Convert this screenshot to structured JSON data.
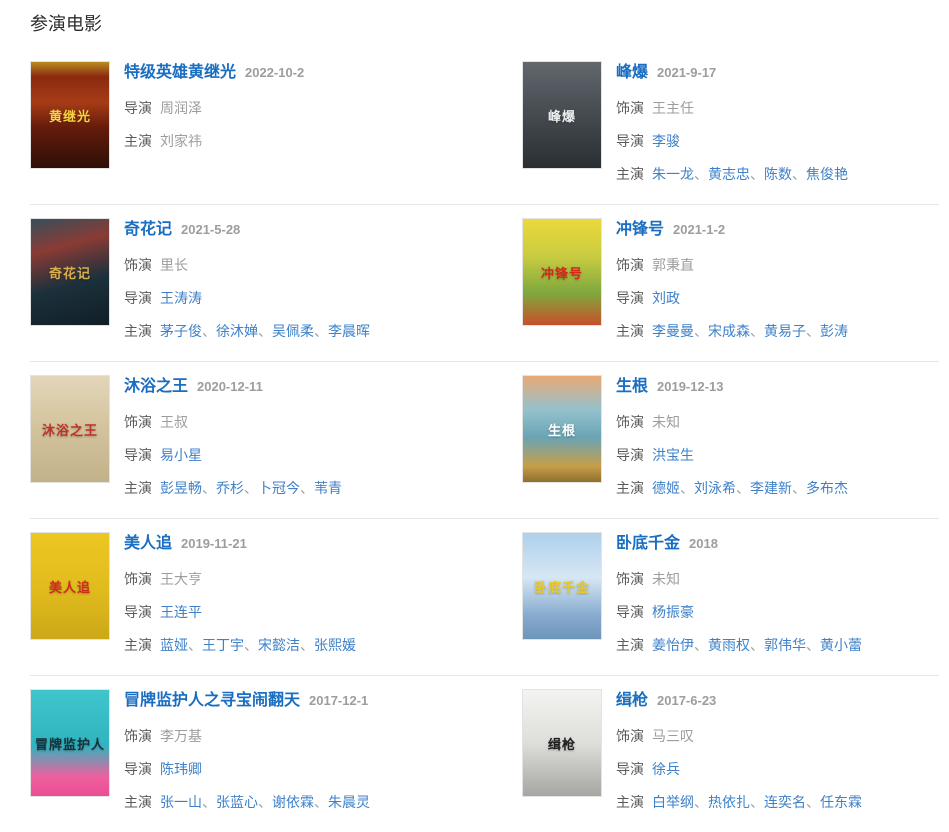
{
  "page": {
    "heading": "参演电影"
  },
  "labels": {
    "role": "饰演",
    "director": "导演",
    "stars": "主演",
    "separator": "、"
  },
  "colors": {
    "title_link": "#1a6ec2",
    "name_link": "#3e81c8",
    "label_gray": "#5b5b5b",
    "value_gray": "#9d9d9d",
    "date_gray": "#9d9d9d",
    "divider": "#e7e7e7",
    "heading_text": "#2d2d2d"
  },
  "movies": [
    {
      "title": "特级英雄黄继光",
      "date": "2022-10-2",
      "role": null,
      "director": {
        "text": "周润泽",
        "is_link": false
      },
      "stars": [
        {
          "text": "刘家祎",
          "is_link": false
        }
      ],
      "poster": {
        "gradient": "linear-gradient(180deg,#b98b1f 0%,#8a2a10 14%,#a63c16 38%,#641b0c 62%,#2e0f07 100%)",
        "label": "黄继光",
        "label_color": "#f6d340"
      }
    },
    {
      "title": "峰爆",
      "date": "2021-9-17",
      "role": {
        "text": "王主任",
        "is_link": false
      },
      "director": {
        "text": "李骏",
        "is_link": true
      },
      "stars": [
        {
          "text": "朱一龙",
          "is_link": true
        },
        {
          "text": "黄志忠",
          "is_link": true
        },
        {
          "text": "陈数",
          "is_link": true
        },
        {
          "text": "焦俊艳",
          "is_link": true
        }
      ],
      "poster": {
        "gradient": "linear-gradient(180deg,#62686d 0%,#474d52 45%,#2a2f33 100%)",
        "label": "峰爆",
        "label_color": "#eceef0"
      }
    },
    {
      "title": "奇花记",
      "date": "2021-5-28",
      "role": {
        "text": "里长",
        "is_link": false
      },
      "director": {
        "text": "王涛涛",
        "is_link": true
      },
      "stars": [
        {
          "text": "茅子俊",
          "is_link": true
        },
        {
          "text": "徐沐婵",
          "is_link": true
        },
        {
          "text": "吴佩柔",
          "is_link": true
        },
        {
          "text": "李晨晖",
          "is_link": true
        }
      ],
      "poster": {
        "gradient": "linear-gradient(165deg,#374f5c 0%,#8a3b34 28%,#1c313c 60%,#101e26 100%)",
        "label": "奇花记",
        "label_color": "#d9af4c"
      }
    },
    {
      "title": "冲锋号",
      "date": "2021-1-2",
      "role": {
        "text": "郭秉直",
        "is_link": false
      },
      "director": {
        "text": "刘政",
        "is_link": true
      },
      "stars": [
        {
          "text": "李曼曼",
          "is_link": true
        },
        {
          "text": "宋成森",
          "is_link": true
        },
        {
          "text": "黄易子",
          "is_link": true
        },
        {
          "text": "彭涛",
          "is_link": true
        }
      ],
      "poster": {
        "gradient": "linear-gradient(180deg,#ecd83c 0%,#c9cc40 35%,#7fa83e 70%,#c8502a 100%)",
        "label": "冲锋号",
        "label_color": "#d3281a"
      }
    },
    {
      "title": "沐浴之王",
      "date": "2020-12-11",
      "role": {
        "text": "王叔",
        "is_link": false
      },
      "director": {
        "text": "易小星",
        "is_link": true
      },
      "stars": [
        {
          "text": "彭昱畅",
          "is_link": true
        },
        {
          "text": "乔杉",
          "is_link": true
        },
        {
          "text": "卜冠今",
          "is_link": true
        },
        {
          "text": "苇青",
          "is_link": true
        }
      ],
      "poster": {
        "gradient": "linear-gradient(180deg,#e3d6ba 0%,#d3c39c 50%,#c2b189 100%)",
        "label": "沐浴之王",
        "label_color": "#bf3126"
      }
    },
    {
      "title": "生根",
      "date": "2019-12-13",
      "role": {
        "text": "未知",
        "is_link": false
      },
      "director": {
        "text": "洪宝生",
        "is_link": true
      },
      "stars": [
        {
          "text": "德姬",
          "is_link": true
        },
        {
          "text": "刘泳希",
          "is_link": true
        },
        {
          "text": "李建新",
          "is_link": true
        },
        {
          "text": "多布杰",
          "is_link": true
        }
      ],
      "poster": {
        "gradient": "linear-gradient(180deg,#e9a876 0%,#93c2cd 32%,#6aa4b4 58%,#c79e49 85%,#8f6f2e 100%)",
        "label": "生根",
        "label_color": "#ffffff"
      }
    },
    {
      "title": "美人追",
      "date": "2019-11-21",
      "role": {
        "text": "王大亨",
        "is_link": false
      },
      "director": {
        "text": "王连平",
        "is_link": true
      },
      "stars": [
        {
          "text": "蓝娅",
          "is_link": true
        },
        {
          "text": "王丁宇",
          "is_link": true
        },
        {
          "text": "宋懿洁",
          "is_link": true
        },
        {
          "text": "张熙媛",
          "is_link": true
        }
      ],
      "poster": {
        "gradient": "linear-gradient(180deg,#ecc722 0%,#e0bb1d 55%,#cda818 100%)",
        "label": "美人追",
        "label_color": "#d02b1f"
      }
    },
    {
      "title": "卧底千金",
      "date": "2018",
      "role": {
        "text": "未知",
        "is_link": false
      },
      "director": {
        "text": "杨振豪",
        "is_link": true
      },
      "stars": [
        {
          "text": "姜怡伊",
          "is_link": true
        },
        {
          "text": "黄雨权",
          "is_link": true
        },
        {
          "text": "郭伟华",
          "is_link": true
        },
        {
          "text": "黄小蕾",
          "is_link": true
        }
      ],
      "poster": {
        "gradient": "linear-gradient(180deg,#aed0ec 0%,#d6e7f4 42%,#86abce 78%,#6e95ba 100%)",
        "label": "卧底千金",
        "label_color": "#e9c930"
      }
    },
    {
      "title": "冒牌监护人之寻宝闹翻天",
      "date": "2017-12-1",
      "role": {
        "text": "李万基",
        "is_link": false
      },
      "director": {
        "text": "陈玮卿",
        "is_link": true
      },
      "stars": [
        {
          "text": "张一山",
          "is_link": true
        },
        {
          "text": "张蓝心",
          "is_link": true
        },
        {
          "text": "谢依霖",
          "is_link": true
        },
        {
          "text": "朱晨灵",
          "is_link": true
        }
      ],
      "poster": {
        "gradient": "linear-gradient(180deg,#3fc6cc 0%,#30b4bf 52%,#ef5f9f 82%,#e94e93 100%)",
        "label": "冒牌监护人",
        "label_color": "#16303a"
      }
    },
    {
      "title": "缉枪",
      "date": "2017-6-23",
      "role": {
        "text": "马三叹",
        "is_link": false
      },
      "director": {
        "text": "徐兵",
        "is_link": true
      },
      "stars": [
        {
          "text": "白举纲",
          "is_link": true
        },
        {
          "text": "热依扎",
          "is_link": true
        },
        {
          "text": "连奕名",
          "is_link": true
        },
        {
          "text": "任东霖",
          "is_link": true
        }
      ],
      "poster": {
        "gradient": "linear-gradient(180deg,#f3f3f1 0%,#dededa 50%,#a5a5a1 100%)",
        "label": "缉枪",
        "label_color": "#1f1f1f"
      }
    }
  ]
}
